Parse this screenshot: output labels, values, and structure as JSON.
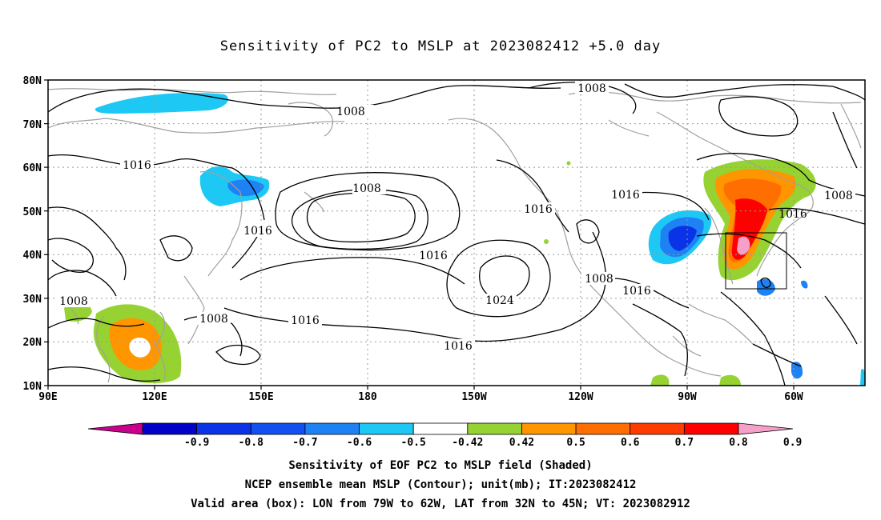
{
  "title": "Sensitivity of PC2 to MSLP at 2023082412 +5.0 day",
  "lat_labels": [
    "80N",
    "70N",
    "60N",
    "50N",
    "40N",
    "30N",
    "20N",
    "10N"
  ],
  "lon_labels": [
    "90E",
    "120E",
    "150E",
    "180",
    "150W",
    "120W",
    "90W",
    "60W"
  ],
  "contour_labels": [
    "1008",
    "1008",
    "1008",
    "1008",
    "1008",
    "1008",
    "1016",
    "1016",
    "1016",
    "1016",
    "1016",
    "1016",
    "1016",
    "1016",
    "1016",
    "1024"
  ],
  "colorbar": {
    "labels": [
      "-0.9",
      "-0.8",
      "-0.7",
      "-0.6",
      "-0.5",
      "-0.42",
      "0.42",
      "0.5",
      "0.6",
      "0.7",
      "0.8",
      "0.9"
    ],
    "colors": [
      "#c8008c",
      "#0000c8",
      "#0a32e6",
      "#1450f0",
      "#1e82f5",
      "#1ec8f5",
      "#ffffff",
      "#96d232",
      "#ff9600",
      "#ff6e00",
      "#ff3c00",
      "#ff0000",
      "#f5a0c8"
    ]
  },
  "box": {
    "lon_from": "79W",
    "lon_to": "62W",
    "lat_from": "32N",
    "lat_to": "45N"
  },
  "captions": {
    "line1": "Sensitivity of EOF PC2 to MSLP field (Shaded)",
    "line2": "NCEP ensemble mean MSLP (Contour); unit(mb); IT:2023082412",
    "line3": "Valid area (box): LON from 79W to 62W, LAT from 32N to 45N; VT: 2023082912"
  }
}
